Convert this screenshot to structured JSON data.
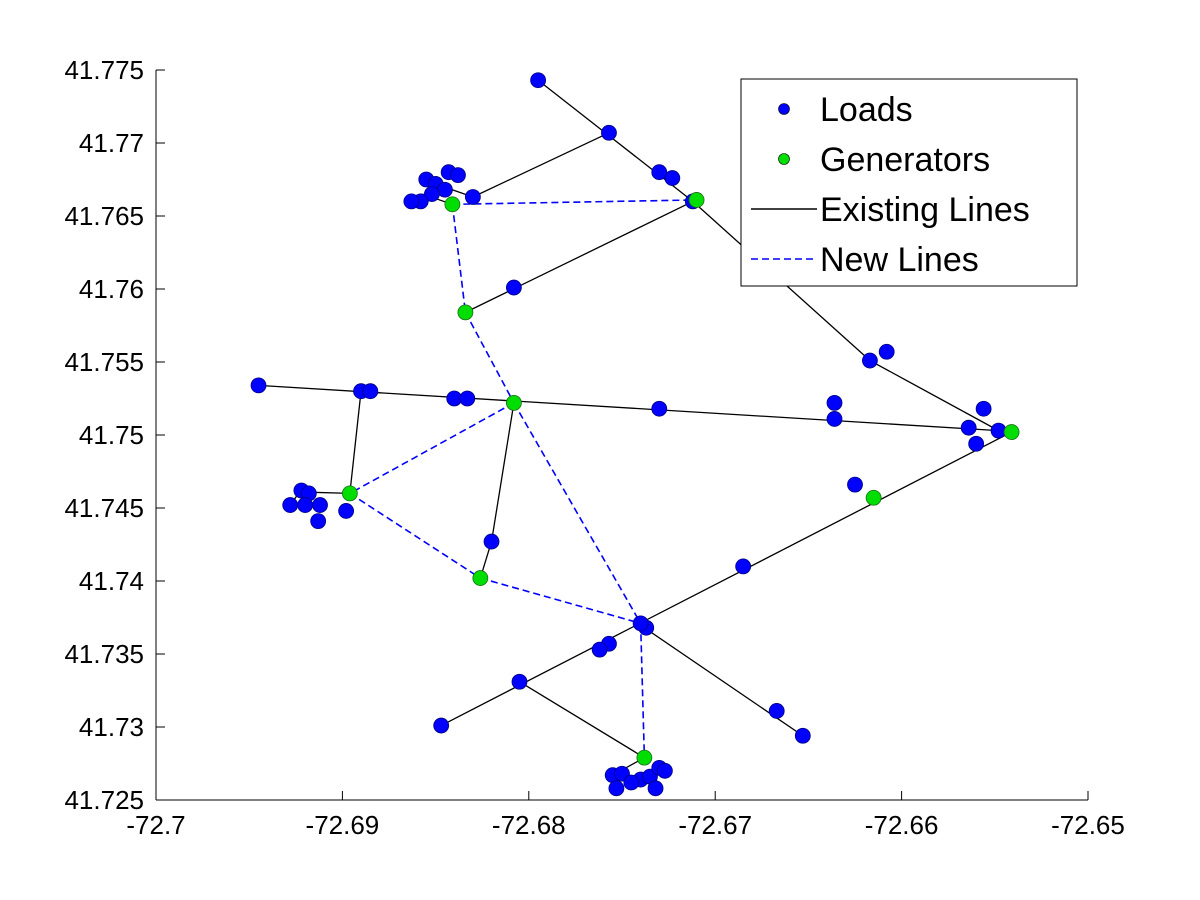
{
  "chart_data": {
    "type": "scatter",
    "title": "",
    "xlabel": "",
    "ylabel": "",
    "xlim": [
      -72.7,
      -72.65
    ],
    "ylim": [
      41.725,
      41.775
    ],
    "x_ticks": [
      -72.7,
      -72.69,
      -72.68,
      -72.67,
      -72.66,
      -72.65
    ],
    "x_tick_labels": [
      "-72.7",
      "-72.69",
      "-72.68",
      "-72.67",
      "-72.66",
      "-72.65"
    ],
    "y_ticks": [
      41.725,
      41.73,
      41.735,
      41.74,
      41.745,
      41.75,
      41.755,
      41.76,
      41.765,
      41.77,
      41.775
    ],
    "y_tick_labels": [
      "41.725",
      "41.73",
      "41.735",
      "41.74",
      "41.745",
      "41.75",
      "41.755",
      "41.76",
      "41.765",
      "41.77",
      "41.775"
    ],
    "grid": false,
    "legend_position": "top-right",
    "series": [
      {
        "name": "Loads",
        "kind": "points",
        "color": "#0000ff",
        "points": [
          [
            -72.6795,
            41.7743
          ],
          [
            -72.6757,
            41.7707
          ],
          [
            -72.673,
            41.768
          ],
          [
            -72.6723,
            41.7676
          ],
          [
            -72.6712,
            41.766
          ],
          [
            -72.683,
            41.7663
          ],
          [
            -72.6855,
            41.7675
          ],
          [
            -72.685,
            41.7672
          ],
          [
            -72.6843,
            41.768
          ],
          [
            -72.6838,
            41.7678
          ],
          [
            -72.6845,
            41.7668
          ],
          [
            -72.6852,
            41.7665
          ],
          [
            -72.6858,
            41.766
          ],
          [
            -72.6863,
            41.766
          ],
          [
            -72.6808,
            41.7601
          ],
          [
            -72.6608,
            41.7557
          ],
          [
            -72.6617,
            41.7551
          ],
          [
            -72.6945,
            41.7534
          ],
          [
            -72.689,
            41.753
          ],
          [
            -72.6885,
            41.753
          ],
          [
            -72.684,
            41.7525
          ],
          [
            -72.6833,
            41.7525
          ],
          [
            -72.673,
            41.7518
          ],
          [
            -72.6636,
            41.7522
          ],
          [
            -72.6636,
            41.7511
          ],
          [
            -72.6564,
            41.7505
          ],
          [
            -72.6556,
            41.7518
          ],
          [
            -72.6548,
            41.7503
          ],
          [
            -72.656,
            41.7494
          ],
          [
            -72.6625,
            41.7466
          ],
          [
            -72.6922,
            41.7462
          ],
          [
            -72.6918,
            41.746
          ],
          [
            -72.6928,
            41.7452
          ],
          [
            -72.692,
            41.7452
          ],
          [
            -72.6912,
            41.7452
          ],
          [
            -72.6898,
            41.7448
          ],
          [
            -72.6913,
            41.7441
          ],
          [
            -72.682,
            41.7427
          ],
          [
            -72.6685,
            41.741
          ],
          [
            -72.6737,
            41.7368
          ],
          [
            -72.674,
            41.7371
          ],
          [
            -72.6757,
            41.7357
          ],
          [
            -72.6762,
            41.7353
          ],
          [
            -72.6805,
            41.7331
          ],
          [
            -72.6667,
            41.7311
          ],
          [
            -72.6653,
            41.7294
          ],
          [
            -72.6847,
            41.7301
          ],
          [
            -72.6755,
            41.7267
          ],
          [
            -72.675,
            41.7268
          ],
          [
            -72.674,
            41.7264
          ],
          [
            -72.6735,
            41.7266
          ],
          [
            -72.6745,
            41.7262
          ],
          [
            -72.673,
            41.7272
          ],
          [
            -72.6727,
            41.727
          ],
          [
            -72.6753,
            41.7258
          ],
          [
            -72.6732,
            41.7258
          ]
        ]
      },
      {
        "name": "Generators",
        "kind": "points",
        "color": "#00dd00",
        "points": [
          [
            -72.671,
            41.7661
          ],
          [
            -72.6841,
            41.7658
          ],
          [
            -72.6834,
            41.7584
          ],
          [
            -72.6808,
            41.7522
          ],
          [
            -72.6541,
            41.7502
          ],
          [
            -72.6615,
            41.7457
          ],
          [
            -72.6896,
            41.746
          ],
          [
            -72.6826,
            41.7402
          ],
          [
            -72.6738,
            41.7279
          ]
        ]
      },
      {
        "name": "Existing Lines",
        "kind": "lines",
        "color": "#000000",
        "dash": "solid",
        "segments": [
          [
            [
              -72.6795,
              41.7743
            ],
            [
              -72.6712,
              41.766
            ]
          ],
          [
            [
              -72.6712,
              41.766
            ],
            [
              -72.6617,
              41.7551
            ]
          ],
          [
            [
              -72.6617,
              41.7551
            ],
            [
              -72.6548,
              41.7503
            ]
          ],
          [
            [
              -72.6757,
              41.7707
            ],
            [
              -72.683,
              41.7663
            ]
          ],
          [
            [
              -72.683,
              41.7663
            ],
            [
              -72.685,
              41.7672
            ]
          ],
          [
            [
              -72.6857,
              41.7665
            ],
            [
              -72.6841,
              41.7658
            ]
          ],
          [
            [
              -72.6712,
              41.766
            ],
            [
              -72.6834,
              41.7584
            ]
          ],
          [
            [
              -72.6945,
              41.7534
            ],
            [
              -72.6548,
              41.7503
            ]
          ],
          [
            [
              -72.689,
              41.753
            ],
            [
              -72.6896,
              41.746
            ]
          ],
          [
            [
              -72.6896,
              41.746
            ],
            [
              -72.6923,
              41.7461
            ]
          ],
          [
            [
              -72.6923,
              41.7461
            ],
            [
              -72.6928,
              41.7452
            ]
          ],
          [
            [
              -72.6808,
              41.7522
            ],
            [
              -72.682,
              41.7427
            ]
          ],
          [
            [
              -72.682,
              41.7427
            ],
            [
              -72.6826,
              41.7402
            ]
          ],
          [
            [
              -72.6541,
              41.7502
            ],
            [
              -72.6847,
              41.7301
            ]
          ],
          [
            [
              -72.6738,
              41.7368
            ],
            [
              -72.6653,
              41.7294
            ]
          ],
          [
            [
              -72.6805,
              41.7331
            ],
            [
              -72.6738,
              41.7279
            ]
          ],
          [
            [
              -72.6738,
              41.7279
            ],
            [
              -72.6755,
              41.7267
            ]
          ]
        ]
      },
      {
        "name": "New Lines",
        "kind": "lines",
        "color": "#0000ff",
        "dash": "dashed",
        "segments": [
          [
            [
              -72.6841,
              41.7658
            ],
            [
              -72.671,
              41.7661
            ]
          ],
          [
            [
              -72.6841,
              41.7658
            ],
            [
              -72.6834,
              41.7584
            ]
          ],
          [
            [
              -72.6834,
              41.7584
            ],
            [
              -72.6808,
              41.7522
            ]
          ],
          [
            [
              -72.6808,
              41.7522
            ],
            [
              -72.6896,
              41.746
            ]
          ],
          [
            [
              -72.6808,
              41.7522
            ],
            [
              -72.674,
              41.7371
            ]
          ],
          [
            [
              -72.6896,
              41.746
            ],
            [
              -72.6826,
              41.7402
            ]
          ],
          [
            [
              -72.6826,
              41.7402
            ],
            [
              -72.674,
              41.7371
            ]
          ],
          [
            [
              -72.674,
              41.7371
            ],
            [
              -72.6738,
              41.7279
            ]
          ]
        ]
      }
    ],
    "legend": {
      "entries": [
        {
          "label": "Loads",
          "symbol": "dot",
          "color": "#0000ff"
        },
        {
          "label": "Generators",
          "symbol": "dot",
          "color": "#00dd00"
        },
        {
          "label": "Existing Lines",
          "symbol": "solid",
          "color": "#000000"
        },
        {
          "label": "New Lines",
          "symbol": "dashed",
          "color": "#0000ff"
        }
      ]
    }
  }
}
